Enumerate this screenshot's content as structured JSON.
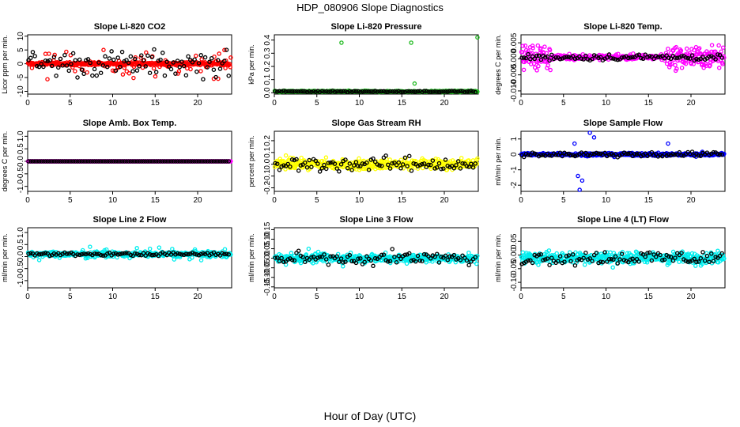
{
  "figure": {
    "title": "HDP_080906  Slope Diagnostics",
    "xlabel": "Hour of Day (UTC)"
  },
  "chart_data": [
    {
      "type": "scatter",
      "title": "Slope Li-820 CO2",
      "ylabel": "Licor ppm per min.",
      "xlim": [
        0,
        24
      ],
      "ylim": [
        -11,
        10.5
      ],
      "xticks": [
        0,
        5,
        10,
        15,
        20
      ],
      "yticks": [
        -10,
        -5,
        0,
        5,
        10
      ],
      "ytick_labels": [
        "-10",
        "-5",
        "0",
        "5",
        "10"
      ],
      "color": "#ff0000",
      "base": 0,
      "band": 0.8,
      "spread": 7.5,
      "outlier_rate": 0.18,
      "black_spread": 7
    },
    {
      "type": "scatter",
      "title": "Slope Li-820 Pressure",
      "ylabel": "kPa per min.",
      "xlim": [
        0,
        24
      ],
      "ylim": [
        -0.01,
        0.44
      ],
      "xticks": [
        0,
        5,
        10,
        15,
        20
      ],
      "yticks": [
        0,
        0.1,
        0.2,
        0.3,
        0.4
      ],
      "ytick_labels": [
        "0.0",
        "0.1",
        "0.2",
        "0.3",
        "0.4"
      ],
      "color": "#22bb22",
      "base": 0.01,
      "band": 0.008,
      "spread": 0.012,
      "outlier_rate": 0,
      "black_spread": 0.006,
      "spikes": [
        [
          7.9,
          0.38
        ],
        [
          16.1,
          0.38
        ],
        [
          16.5,
          0.07
        ],
        [
          23.9,
          0.42
        ]
      ]
    },
    {
      "type": "scatter",
      "title": "Slope Li-820 Temp.",
      "ylabel": "degrees C per min.",
      "xlim": [
        0,
        24
      ],
      "ylim": [
        -0.011,
        0.0075
      ],
      "xticks": [
        0,
        5,
        10,
        15,
        20
      ],
      "yticks": [
        -0.01,
        -0.005,
        0,
        0.005
      ],
      "ytick_labels": [
        "-0.010",
        "-0.005",
        "0.000",
        "0.005"
      ],
      "color": "#ff00ff",
      "base": 0.0005,
      "band": 0.001,
      "spread": 0.0015,
      "outlier_rate": 0.1,
      "black_spread": 0.0015,
      "noisy_ranges": [
        [
          0,
          3.5,
          0.0055
        ],
        [
          17,
          24,
          0.005
        ]
      ]
    },
    {
      "type": "scatter",
      "title": "Slope Amb. Box Temp.",
      "ylabel": "degrees C per min.",
      "xlim": [
        0,
        24
      ],
      "ylim": [
        -1.2,
        1.2
      ],
      "xticks": [
        0,
        5,
        10,
        15,
        20
      ],
      "yticks": [
        -1,
        -0.5,
        0,
        0.5,
        1
      ],
      "ytick_labels": [
        "-1.0",
        "-0.5",
        "0.0",
        "0.5",
        "1.0"
      ],
      "color": "#ff00ff",
      "base": 0,
      "band": 0,
      "spread": 0,
      "outlier_rate": 0,
      "black_spread": 0
    },
    {
      "type": "scatter",
      "title": "Slope Gas Stream RH",
      "ylabel": "percent per min.",
      "xlim": [
        0,
        24
      ],
      "ylim": [
        -0.23,
        0.28
      ],
      "xticks": [
        0,
        5,
        10,
        15,
        20
      ],
      "yticks": [
        -0.2,
        -0.1,
        0,
        0.1,
        0.2
      ],
      "ytick_labels": [
        "-0.2",
        "-0.1",
        "0.0",
        "0.1",
        "0.2"
      ],
      "color": "#ffff00",
      "base": 0,
      "band": 0.06,
      "spread": 0.1,
      "outlier_rate": 0.1,
      "black_spread": 0.09
    },
    {
      "type": "scatter",
      "title": "Slope Sample Flow",
      "ylabel": "ml/min per min.",
      "xlim": [
        0,
        24
      ],
      "ylim": [
        -2.4,
        1.5
      ],
      "xticks": [
        0,
        5,
        10,
        15,
        20
      ],
      "yticks": [
        -2,
        -1,
        0,
        1
      ],
      "ytick_labels": [
        "-2",
        "-1",
        "0",
        "1"
      ],
      "color": "#0000ff",
      "base": 0,
      "band": 0.12,
      "spread": 0.3,
      "outlier_rate": 0.08,
      "black_spread": 0.25,
      "spikes": [
        [
          6.7,
          -1.4
        ],
        [
          6.9,
          -2.3
        ],
        [
          7.2,
          -1.7
        ],
        [
          8.1,
          1.4
        ],
        [
          8.6,
          1.1
        ],
        [
          6.3,
          0.7
        ],
        [
          17.3,
          0.7
        ]
      ]
    },
    {
      "type": "scatter",
      "title": "Slope Line 2 Flow",
      "ylabel": "ml/min per min.",
      "xlim": [
        0,
        24
      ],
      "ylim": [
        -1.3,
        1.2
      ],
      "xticks": [
        0,
        5,
        10,
        15,
        20
      ],
      "yticks": [
        -1,
        -0.5,
        0,
        0.5,
        1
      ],
      "ytick_labels": [
        "-1.0",
        "-0.5",
        "0.0",
        "0.5",
        "1.0"
      ],
      "color": "#00eeee",
      "base": 0.1,
      "band": 0.15,
      "spread": 0.45,
      "outlier_rate": 0.1,
      "black_spread": 0.1
    },
    {
      "type": "scatter",
      "title": "Slope Line 3 Flow",
      "ylabel": "ml/min per min.",
      "xlim": [
        0,
        24
      ],
      "ylim": [
        -0.155,
        0.16
      ],
      "xticks": [
        0,
        5,
        10,
        15,
        20
      ],
      "yticks": [
        -0.15,
        -0.1,
        -0.05,
        0,
        0.05,
        0.1,
        0.15
      ],
      "ytick_labels": [
        "-0.15",
        "-0.10",
        "-0.05",
        "0.00",
        "0.05",
        "0.10",
        "0.15"
      ],
      "color": "#00eeee",
      "base": 0,
      "band": 0.03,
      "spread": 0.06,
      "outlier_rate": 0.1,
      "black_spread": 0.05
    },
    {
      "type": "scatter",
      "title": "Slope Line 4 (LT) Flow",
      "ylabel": "ml/min per min.",
      "xlim": [
        0,
        24
      ],
      "ylim": [
        -0.12,
        0.1
      ],
      "xticks": [
        0,
        5,
        10,
        15,
        20
      ],
      "yticks": [
        -0.1,
        -0.05,
        0,
        0.05
      ],
      "ytick_labels": [
        "-0.10",
        "-0.05",
        "0.00",
        "0.05"
      ],
      "color": "#00eeee",
      "base": -0.01,
      "band": 0.03,
      "spread": 0.045,
      "outlier_rate": 0.1,
      "black_spread": 0.04
    }
  ]
}
